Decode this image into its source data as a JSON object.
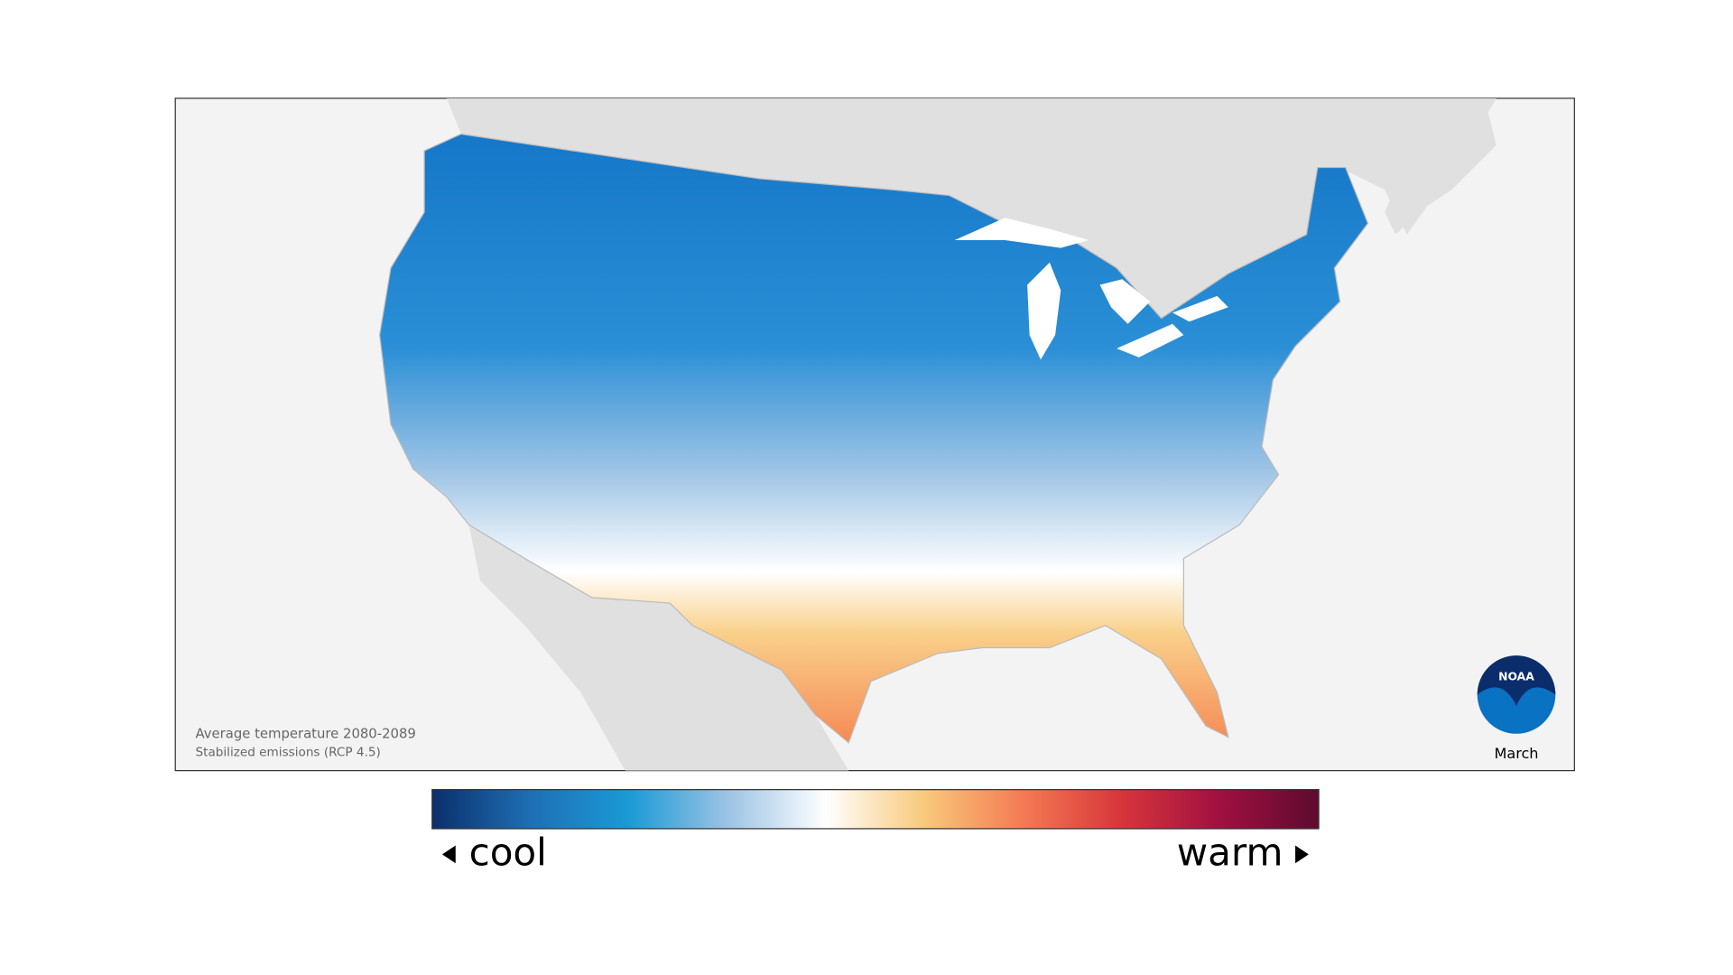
{
  "map": {
    "caption": [
      "Average temperature 2080-2089",
      "Stabilized emissions (RCP 4.5)"
    ],
    "month": "March",
    "logo": "NOAA"
  },
  "legend": {
    "low_label": "cool",
    "high_label": "warm",
    "colors": [
      "#0b2f6b",
      "#1f6fb5",
      "#1b9ad6",
      "#9cc3e5",
      "#ffffff",
      "#f8c97a",
      "#f47a53",
      "#d7353b",
      "#a01040",
      "#5e0a2e"
    ]
  }
}
